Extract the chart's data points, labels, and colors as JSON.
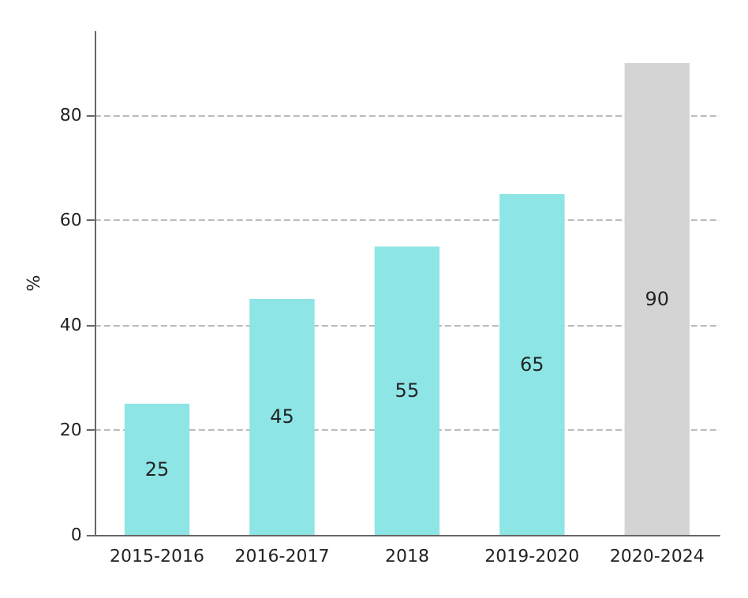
{
  "chart_data": {
    "type": "bar",
    "ylabel": "%",
    "categories": [
      "2015-2016",
      "2016-2017",
      "2018",
      "2019-2020",
      "2020-2024"
    ],
    "values": [
      25,
      45,
      55,
      65,
      90
    ],
    "colors": [
      "#8ee5e5",
      "#8ee5e5",
      "#8ee5e5",
      "#8ee5e5",
      "#d4d4d4"
    ],
    "ylim": [
      0,
      96
    ],
    "yticks": [
      0,
      20,
      40,
      60,
      80
    ],
    "grid": "y",
    "data_labels": true
  }
}
